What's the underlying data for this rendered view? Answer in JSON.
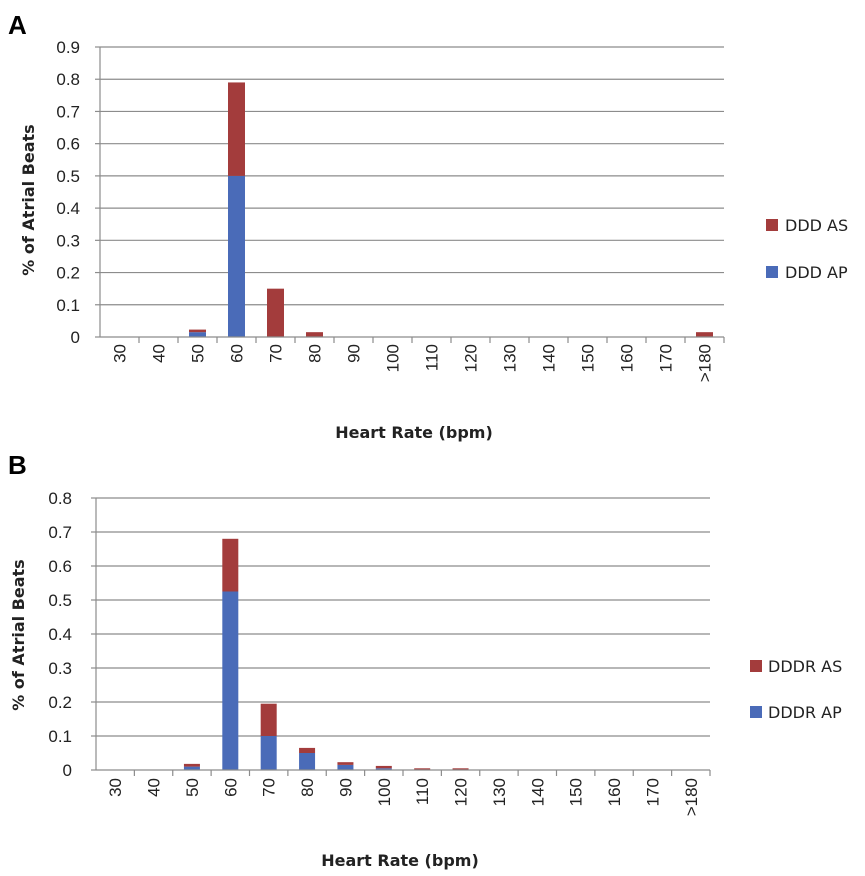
{
  "colors": {
    "as": "#a33c3c",
    "ap": "#4a6bb8",
    "grid": "#8c8c8c",
    "axis": "#8c8c8c"
  },
  "chart_data": [
    {
      "panel": "A",
      "type": "bar",
      "stacked": true,
      "categories": [
        "30",
        "40",
        "50",
        "60",
        "70",
        "80",
        "90",
        "100",
        "110",
        "120",
        "130",
        "140",
        "150",
        "160",
        "170",
        ">180"
      ],
      "series": [
        {
          "name": "DDD AP",
          "values": [
            0,
            0,
            0.015,
            0.5,
            0,
            0,
            0,
            0,
            0,
            0,
            0,
            0,
            0,
            0,
            0,
            0
          ]
        },
        {
          "name": "DDD AS",
          "values": [
            0,
            0,
            0.008,
            0.29,
            0.15,
            0.015,
            0,
            0,
            0,
            0,
            0,
            0,
            0,
            0,
            0,
            0.015
          ]
        }
      ],
      "yticks": [
        "0",
        "0.1",
        "0.2",
        "0.3",
        "0.4",
        "0.5",
        "0.6",
        "0.7",
        "0.8",
        "0.9"
      ],
      "ylim": [
        0,
        0.9
      ],
      "xlabel": "Heart Rate (bpm)",
      "ylabel": "% of Atrial Beats",
      "grid": true,
      "legend": "right"
    },
    {
      "panel": "B",
      "type": "bar",
      "stacked": true,
      "categories": [
        "30",
        "40",
        "50",
        "60",
        "70",
        "80",
        "90",
        "100",
        "110",
        "120",
        "130",
        "140",
        "150",
        "160",
        "170",
        ">180"
      ],
      "series": [
        {
          "name": "DDDR AP",
          "values": [
            0,
            0,
            0.01,
            0.525,
            0.1,
            0.05,
            0.015,
            0.005,
            0,
            0,
            0,
            0,
            0,
            0,
            0,
            0
          ]
        },
        {
          "name": "DDDR AS",
          "values": [
            0,
            0,
            0.008,
            0.155,
            0.095,
            0.015,
            0.008,
            0.007,
            0.005,
            0.005,
            0,
            0,
            0,
            0,
            0,
            0
          ]
        }
      ],
      "yticks": [
        "0",
        "0.1",
        "0.2",
        "0.3",
        "0.4",
        "0.5",
        "0.6",
        "0.7",
        "0.8"
      ],
      "ylim": [
        0,
        0.8
      ],
      "xlabel": "Heart Rate (bpm)",
      "ylabel": "% of Atrial Beats",
      "grid": true,
      "legend": "right"
    }
  ]
}
